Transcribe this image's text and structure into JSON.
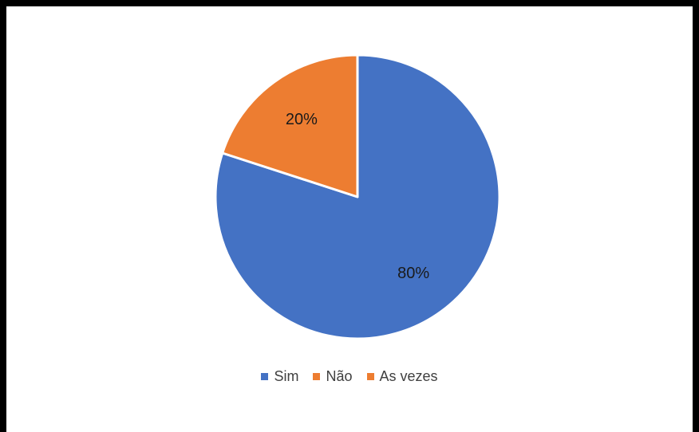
{
  "chart_data": {
    "type": "pie",
    "title": "",
    "slices": [
      {
        "label": "Sim",
        "value": 80,
        "display": "80%",
        "color": "#4472C4"
      },
      {
        "label": "Não",
        "value": 20,
        "display": "20%",
        "color": "#ED7D31"
      },
      {
        "label": "As vezes",
        "value": 0,
        "display": "",
        "color": "#ED7D31"
      }
    ],
    "legend": {
      "position": "bottom"
    }
  }
}
